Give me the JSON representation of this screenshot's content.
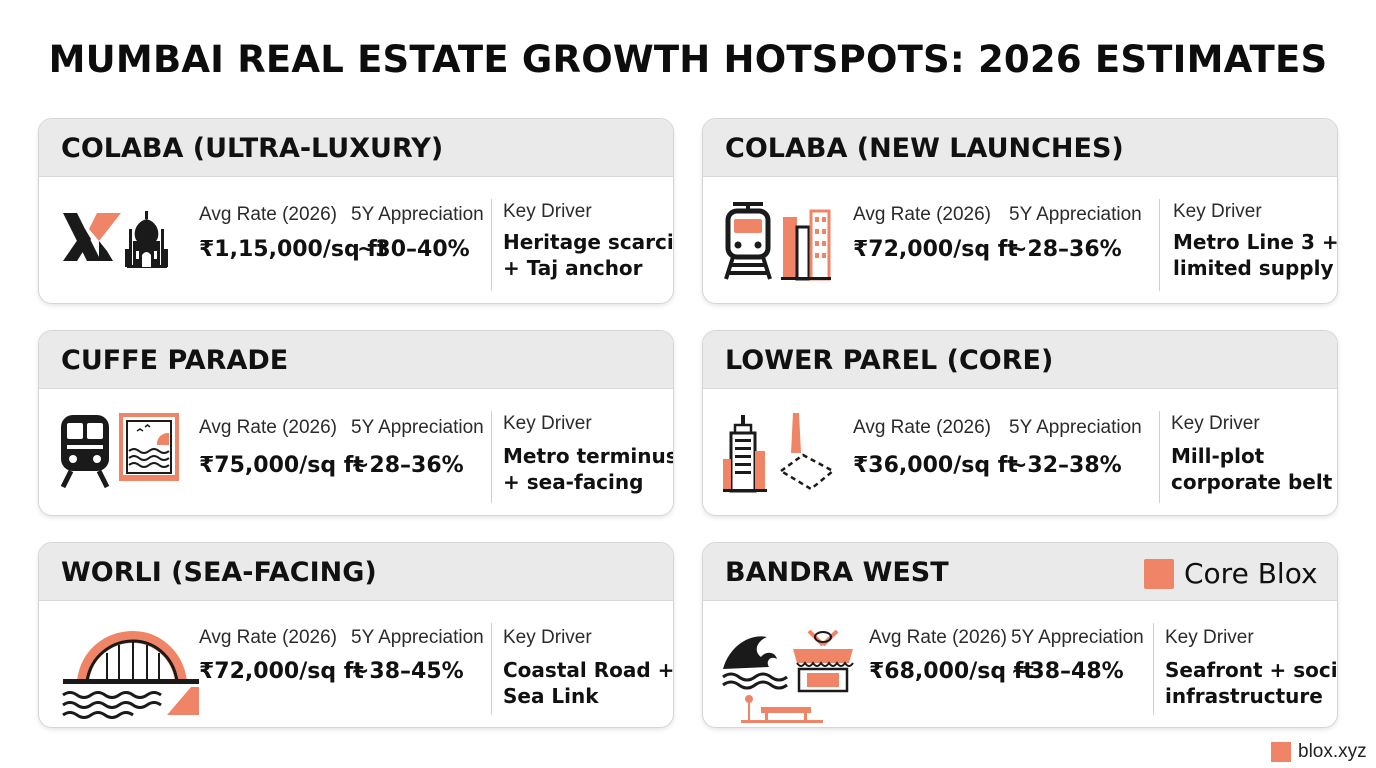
{
  "title": "MUMBAI REAL ESTATE GROWTH HOTSPOTS: 2026 ESTIMATES",
  "labels": {
    "avg_rate": "Avg Rate (2026)",
    "appreciation": "5Y Appreciation",
    "key_driver": "Key Driver"
  },
  "cards": [
    {
      "title": "COLABA (ULTRA-LUXURY)",
      "rate": "₹1,15,000/sq ft",
      "appreciation": "~30–40%",
      "driver_1": "Heritage scarcity",
      "driver_2": "+ Taj anchor"
    },
    {
      "title": "COLABA (NEW LAUNCHES)",
      "rate": "₹72,000/sq ft",
      "appreciation": "~28–36%",
      "driver_1": "Metro Line 3 +",
      "driver_2": "limited supply"
    },
    {
      "title": "CUFFE PARADE",
      "rate": "₹75,000/sq ft",
      "appreciation": "~28–36%",
      "driver_1": "Metro terminus",
      "driver_2": "+ sea-facing"
    },
    {
      "title": "LOWER PAREL (CORE)",
      "rate": "₹36,000/sq ft",
      "appreciation": "~32–38%",
      "driver_1": "Mill-plot",
      "driver_2": "corporate belt"
    },
    {
      "title": "WORLI (SEA-FACING)",
      "rate": "₹72,000/sq ft",
      "appreciation": "~38–45%",
      "driver_1": "Coastal Road +",
      "driver_2": "Sea Link"
    },
    {
      "title": "BANDRA WEST",
      "rate": "₹68,000/sq ft",
      "appreciation": "~38–48%",
      "driver_1": "Seafront + social",
      "driver_2": "infrastructure"
    }
  ],
  "legend": {
    "label": "Core Blox",
    "color": "#ef8466"
  },
  "footer": {
    "label": "blox.xyz"
  },
  "colors": {
    "accent": "#ef8466",
    "dark": "#1a1a1a",
    "header_bg": "#eaeaea"
  }
}
